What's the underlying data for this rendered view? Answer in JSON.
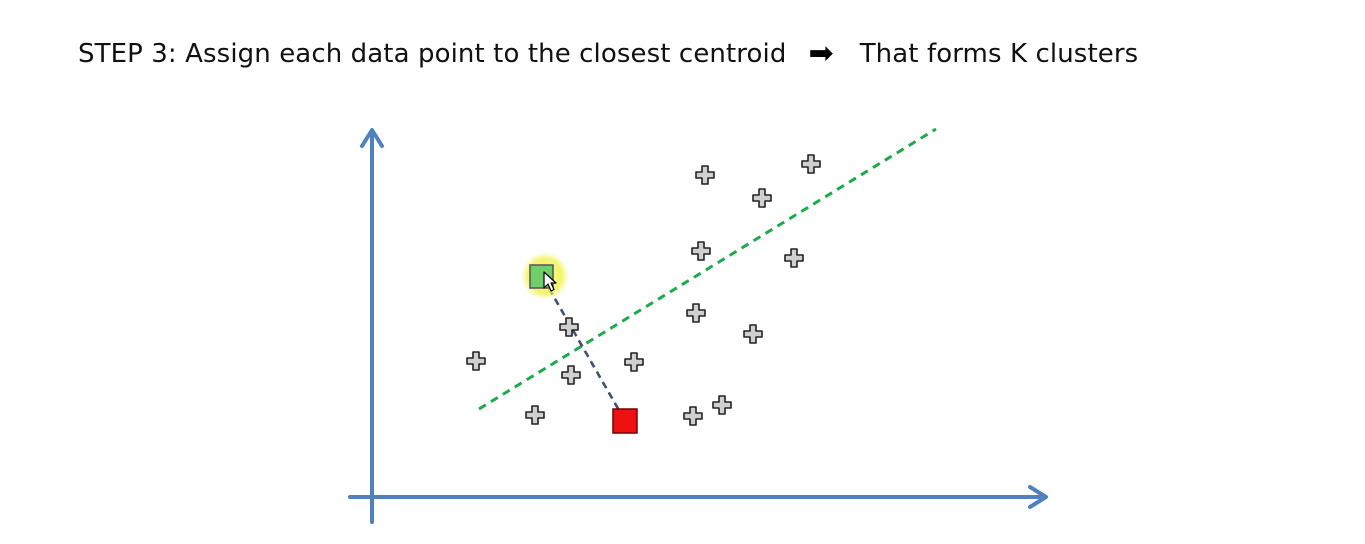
{
  "slide": {
    "step_label": "STEP 3:",
    "step_text": "Assign each data point to the closest centroid",
    "arrow_glyph": "➡",
    "result_text": "That forms K clusters"
  },
  "diagram": {
    "colors": {
      "axis": "#4f81bd",
      "divider": "#1daa4d",
      "connector": "#3d5170",
      "centroid_green": "#6fcf6a",
      "centroid_red": "#ee1111",
      "highlight": "#f2f25a",
      "point_fill": "#d0d0d0",
      "point_stroke": "#222222"
    },
    "icons": {
      "data_point": "plus-marker-icon",
      "cursor": "mouse-pointer-icon"
    }
  }
}
